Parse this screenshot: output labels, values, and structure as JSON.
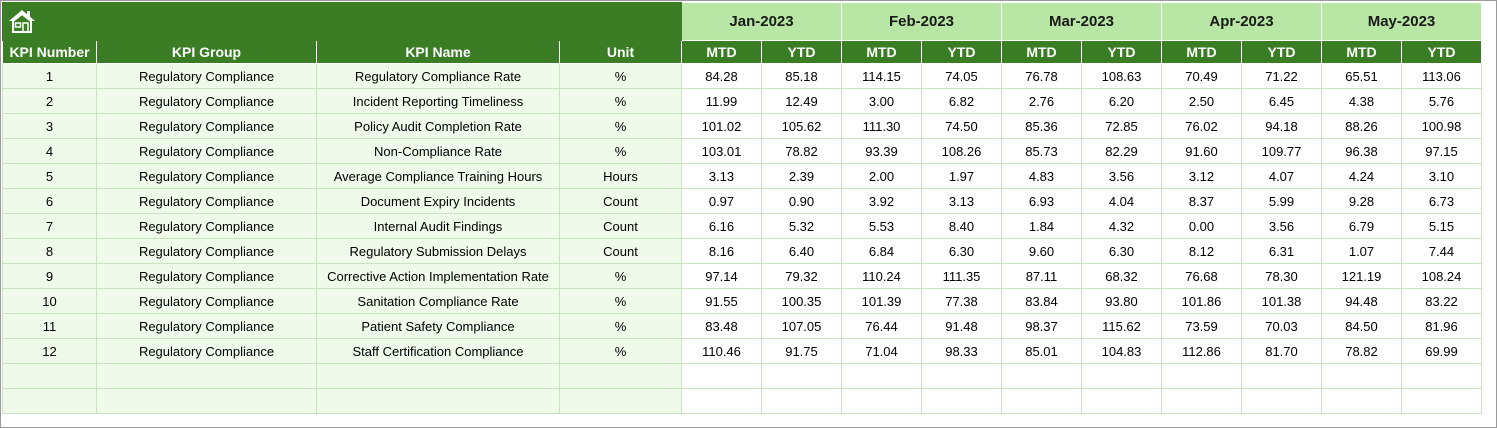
{
  "home_icon": "home-icon",
  "months": [
    "Jan-2023",
    "Feb-2023",
    "Mar-2023",
    "Apr-2023",
    "May-2023"
  ],
  "headers": {
    "kpi_number": "KPI Number",
    "kpi_group": "KPI Group",
    "kpi_name": "KPI Name",
    "unit": "Unit",
    "mtd": "MTD",
    "ytd": "YTD"
  },
  "rows": [
    {
      "num": "1",
      "group": "Regulatory Compliance",
      "name": "Regulatory Compliance Rate",
      "unit": "%",
      "vals": [
        "84.28",
        "85.18",
        "114.15",
        "74.05",
        "76.78",
        "108.63",
        "70.49",
        "71.22",
        "65.51",
        "113.06"
      ]
    },
    {
      "num": "2",
      "group": "Regulatory Compliance",
      "name": "Incident Reporting Timeliness",
      "unit": "%",
      "vals": [
        "11.99",
        "12.49",
        "3.00",
        "6.82",
        "2.76",
        "6.20",
        "2.50",
        "6.45",
        "4.38",
        "5.76"
      ]
    },
    {
      "num": "3",
      "group": "Regulatory Compliance",
      "name": "Policy Audit Completion Rate",
      "unit": "%",
      "vals": [
        "101.02",
        "105.62",
        "111.30",
        "74.50",
        "85.36",
        "72.85",
        "76.02",
        "94.18",
        "88.26",
        "100.98"
      ]
    },
    {
      "num": "4",
      "group": "Regulatory Compliance",
      "name": "Non-Compliance Rate",
      "unit": "%",
      "vals": [
        "103.01",
        "78.82",
        "93.39",
        "108.26",
        "85.73",
        "82.29",
        "91.60",
        "109.77",
        "96.38",
        "97.15"
      ]
    },
    {
      "num": "5",
      "group": "Regulatory Compliance",
      "name": "Average Compliance Training Hours",
      "unit": "Hours",
      "vals": [
        "3.13",
        "2.39",
        "2.00",
        "1.97",
        "4.83",
        "3.56",
        "3.12",
        "4.07",
        "4.24",
        "3.10"
      ]
    },
    {
      "num": "6",
      "group": "Regulatory Compliance",
      "name": "Document Expiry Incidents",
      "unit": "Count",
      "vals": [
        "0.97",
        "0.90",
        "3.92",
        "3.13",
        "6.93",
        "4.04",
        "8.37",
        "5.99",
        "9.28",
        "6.73"
      ]
    },
    {
      "num": "7",
      "group": "Regulatory Compliance",
      "name": "Internal Audit Findings",
      "unit": "Count",
      "vals": [
        "6.16",
        "5.32",
        "5.53",
        "8.40",
        "1.84",
        "4.32",
        "0.00",
        "3.56",
        "6.79",
        "5.15"
      ]
    },
    {
      "num": "8",
      "group": "Regulatory Compliance",
      "name": "Regulatory Submission Delays",
      "unit": "Count",
      "vals": [
        "8.16",
        "6.40",
        "6.84",
        "6.30",
        "9.60",
        "6.30",
        "8.12",
        "6.31",
        "1.07",
        "7.44"
      ]
    },
    {
      "num": "9",
      "group": "Regulatory Compliance",
      "name": "Corrective Action Implementation Rate",
      "unit": "%",
      "vals": [
        "97.14",
        "79.32",
        "110.24",
        "111.35",
        "87.11",
        "68.32",
        "76.68",
        "78.30",
        "121.19",
        "108.24"
      ]
    },
    {
      "num": "10",
      "group": "Regulatory Compliance",
      "name": "Sanitation Compliance Rate",
      "unit": "%",
      "vals": [
        "91.55",
        "100.35",
        "101.39",
        "77.38",
        "83.84",
        "93.80",
        "101.86",
        "101.38",
        "94.48",
        "83.22"
      ]
    },
    {
      "num": "11",
      "group": "Regulatory Compliance",
      "name": "Patient Safety Compliance",
      "unit": "%",
      "vals": [
        "83.48",
        "107.05",
        "76.44",
        "91.48",
        "98.37",
        "115.62",
        "73.59",
        "70.03",
        "84.50",
        "81.96"
      ]
    },
    {
      "num": "12",
      "group": "Regulatory Compliance",
      "name": "Staff Certification Compliance",
      "unit": "%",
      "vals": [
        "110.46",
        "91.75",
        "71.04",
        "98.33",
        "85.01",
        "104.83",
        "112.86",
        "81.70",
        "78.82",
        "69.99"
      ]
    },
    {
      "num": "",
      "group": "",
      "name": "",
      "unit": "",
      "vals": [
        "",
        "",
        "",
        "",
        "",
        "",
        "",
        "",
        "",
        ""
      ]
    },
    {
      "num": "",
      "group": "",
      "name": "",
      "unit": "",
      "vals": [
        "",
        "",
        "",
        "",
        "",
        "",
        "",
        "",
        "",
        ""
      ]
    }
  ]
}
